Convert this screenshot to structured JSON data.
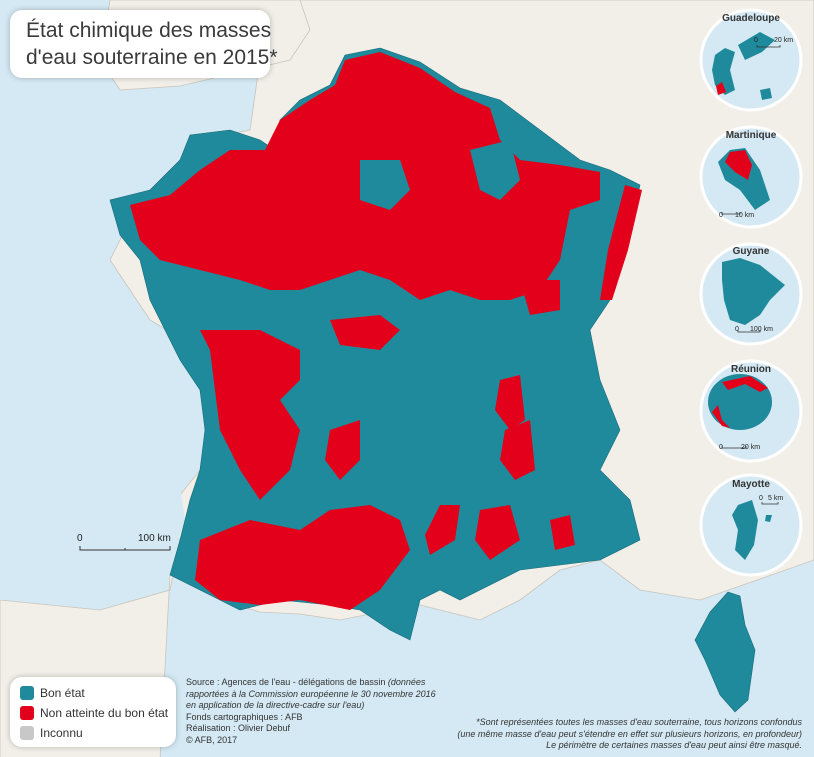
{
  "title": {
    "line1": "État chimique des masses",
    "line2": "d'eau souterraine en 2015*"
  },
  "legend": {
    "items": [
      {
        "label": "Bon état",
        "color": "#1f8a9c"
      },
      {
        "label": "Non atteinte du bon état",
        "color": "#e2001a"
      },
      {
        "label": "Inconnu",
        "color": "#c8c8c8"
      }
    ]
  },
  "scale": {
    "zero": "0",
    "distance": "100 km"
  },
  "insets": [
    {
      "name": "Guadeloupe",
      "scale_zero": "0",
      "scale_distance": "20 km"
    },
    {
      "name": "Martinique",
      "scale_zero": "0",
      "scale_distance": "10 km"
    },
    {
      "name": "Guyane",
      "scale_zero": "0",
      "scale_distance": "100 km"
    },
    {
      "name": "Réunion",
      "scale_zero": "0",
      "scale_distance": "20 km"
    },
    {
      "name": "Mayotte",
      "scale_zero": "0",
      "scale_distance": "5 km"
    }
  ],
  "source": {
    "line1": "Source : Agences de l'eau - délégations de bassin",
    "line1_italic": " (données",
    "line2": "rapportées à la Commission européenne le 30 novembre 2016",
    "line3": "en application de la directive-cadre sur l'eau)",
    "line4": "Fonds cartographiques : AFB",
    "line5": "Réalisation : Olivier Debuf",
    "line6": "© AFB, 2017"
  },
  "footnote": {
    "line1": "*Sont représentées toutes les masses d'eau souterraine, tous horizons confondus",
    "line2": "(une même masse d'eau peut s'étendre en effet sur plusieurs horizons, en profondeur)",
    "line3": "Le périmètre de certaines masses d'eau peut ainsi être masqué."
  },
  "colors": {
    "sea": "#d4e9f3",
    "land": "#f2efe9",
    "good": "#1f8a9c",
    "bad": "#e2001a",
    "unknown": "#c8c8c8"
  }
}
